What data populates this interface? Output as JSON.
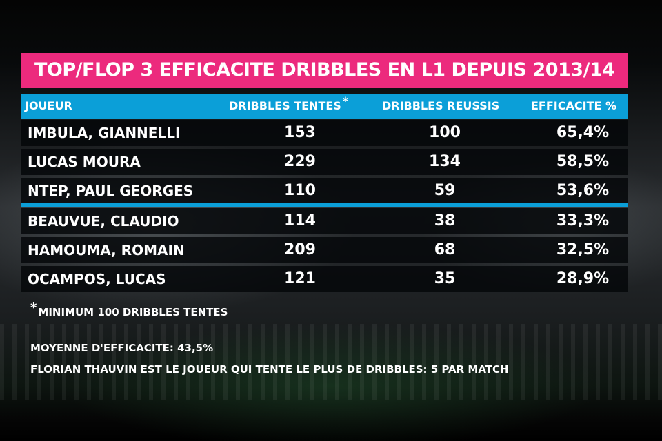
{
  "title": "TOP/FLOP 3 EFFICACITE DRIBBLES EN L1 DEPUIS 2013/14",
  "table": {
    "headers": {
      "player": "JOUEUR",
      "attempted": "DRIBBLES TENTES",
      "attempted_marker": "*",
      "successful": "DRIBBLES REUSSIS",
      "efficiency": "EFFICACITE %"
    },
    "rows": [
      {
        "player": "IMBULA, GIANNELLI",
        "attempted": "153",
        "successful": "100",
        "efficiency": "65,4%"
      },
      {
        "player": "LUCAS MOURA",
        "attempted": "229",
        "successful": "134",
        "efficiency": "58,5%"
      },
      {
        "player": "NTEP, PAUL GEORGES",
        "attempted": "110",
        "successful": "59",
        "efficiency": "53,6%"
      },
      {
        "player": "BEAUVUE, CLAUDIO",
        "attempted": "114",
        "successful": "38",
        "efficiency": "33,3%"
      },
      {
        "player": "HAMOUMA, ROMAIN",
        "attempted": "209",
        "successful": "68",
        "efficiency": "32,5%"
      },
      {
        "player": "OCAMPOS, LUCAS",
        "attempted": "121",
        "successful": "35",
        "efficiency": "28,9%"
      }
    ]
  },
  "footnote": {
    "marker": "*",
    "text": "MINIMUM 100 DRIBBLES TENTES"
  },
  "notes": [
    "MOYENNE D'EFFICACITE: 43,5%",
    "FLORIAN THAUVIN EST LE JOUEUR QUI TENTE LE PLUS DE DRIBBLES: 5 PAR MATCH"
  ],
  "colors": {
    "title_bar": "#ec2a7d",
    "header_bar": "#0b9fd8",
    "row_background": "#04060a",
    "text": "#ffffff"
  }
}
